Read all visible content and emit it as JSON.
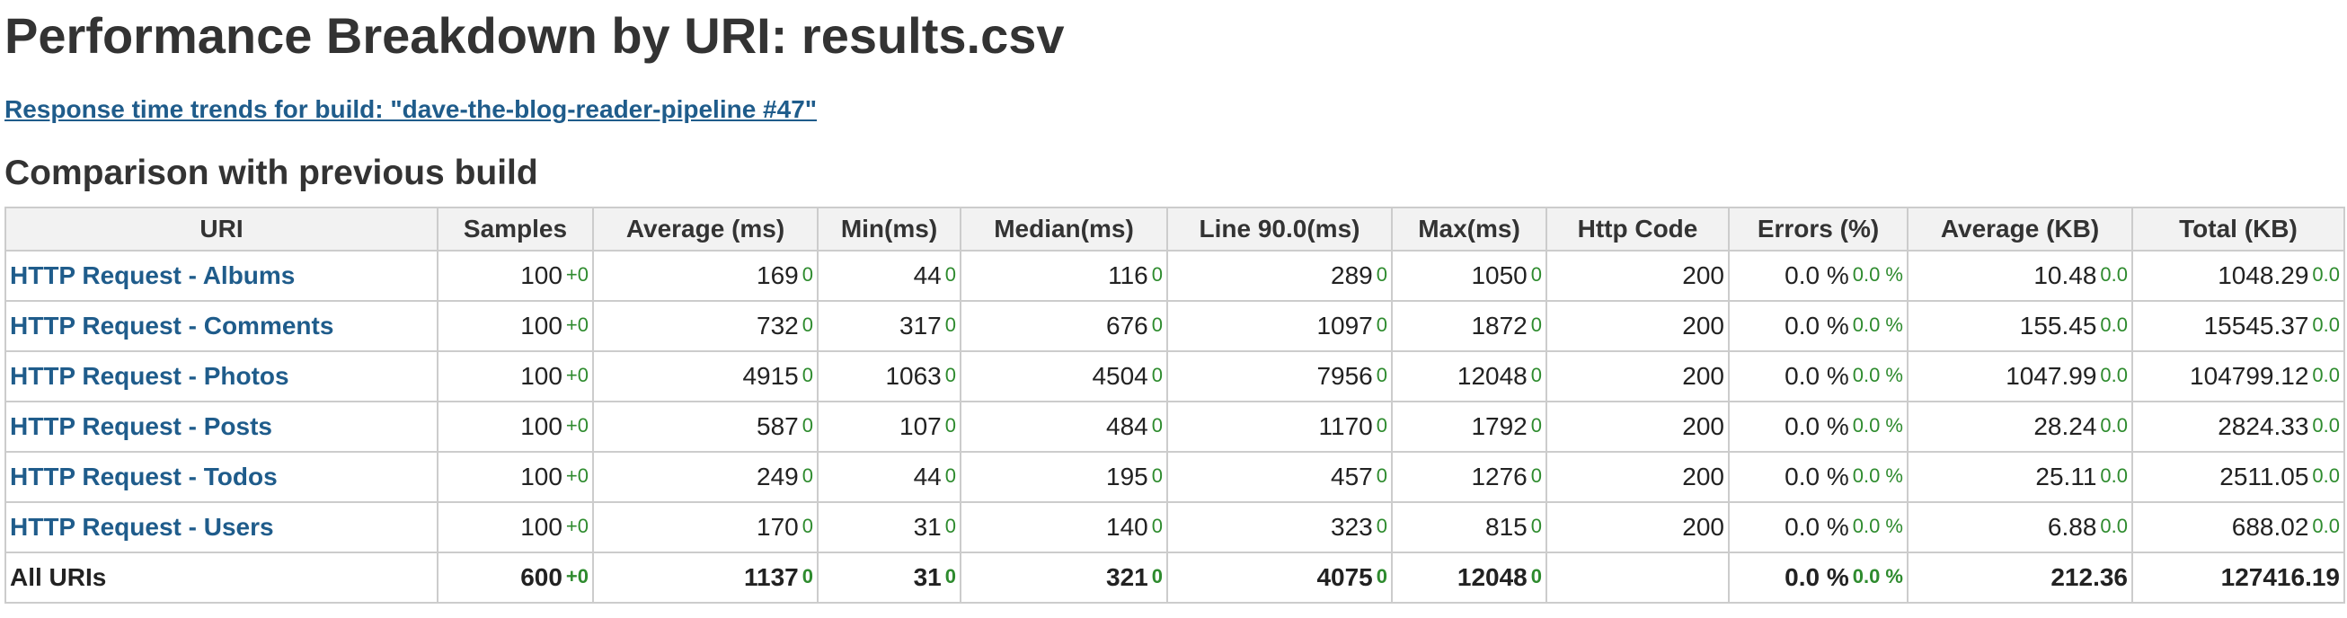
{
  "page": {
    "title": "Performance Breakdown by URI: results.csv",
    "trend_link": "Response time trends for build: \"dave-the-blog-reader-pipeline #47\"",
    "comparison_heading": "Comparison with previous build"
  },
  "table": {
    "headers": [
      "URI",
      "Samples",
      "Average (ms)",
      "Min(ms)",
      "Median(ms)",
      "Line 90.0(ms)",
      "Max(ms)",
      "Http Code",
      "Errors (%)",
      "Average (KB)",
      "Total (KB)"
    ],
    "rows": [
      {
        "uri": "HTTP Request - Albums",
        "samples": "100",
        "samples_d": "+0",
        "avg": "169",
        "avg_d": "0",
        "min": "44",
        "min_d": "0",
        "median": "116",
        "median_d": "0",
        "line90": "289",
        "line90_d": "0",
        "max": "1050",
        "max_d": "0",
        "http": "200",
        "errors": "0.0 %",
        "errors_d": "0.0 %",
        "avgkb": "10.48",
        "avgkb_d": "0.0",
        "totalkb": "1048.29",
        "totalkb_d": "0.0"
      },
      {
        "uri": "HTTP Request - Comments",
        "samples": "100",
        "samples_d": "+0",
        "avg": "732",
        "avg_d": "0",
        "min": "317",
        "min_d": "0",
        "median": "676",
        "median_d": "0",
        "line90": "1097",
        "line90_d": "0",
        "max": "1872",
        "max_d": "0",
        "http": "200",
        "errors": "0.0 %",
        "errors_d": "0.0 %",
        "avgkb": "155.45",
        "avgkb_d": "0.0",
        "totalkb": "15545.37",
        "totalkb_d": "0.0"
      },
      {
        "uri": "HTTP Request - Photos",
        "samples": "100",
        "samples_d": "+0",
        "avg": "4915",
        "avg_d": "0",
        "min": "1063",
        "min_d": "0",
        "median": "4504",
        "median_d": "0",
        "line90": "7956",
        "line90_d": "0",
        "max": "12048",
        "max_d": "0",
        "http": "200",
        "errors": "0.0 %",
        "errors_d": "0.0 %",
        "avgkb": "1047.99",
        "avgkb_d": "0.0",
        "totalkb": "104799.12",
        "totalkb_d": "0.0"
      },
      {
        "uri": "HTTP Request - Posts",
        "samples": "100",
        "samples_d": "+0",
        "avg": "587",
        "avg_d": "0",
        "min": "107",
        "min_d": "0",
        "median": "484",
        "median_d": "0",
        "line90": "1170",
        "line90_d": "0",
        "max": "1792",
        "max_d": "0",
        "http": "200",
        "errors": "0.0 %",
        "errors_d": "0.0 %",
        "avgkb": "28.24",
        "avgkb_d": "0.0",
        "totalkb": "2824.33",
        "totalkb_d": "0.0"
      },
      {
        "uri": "HTTP Request - Todos",
        "samples": "100",
        "samples_d": "+0",
        "avg": "249",
        "avg_d": "0",
        "min": "44",
        "min_d": "0",
        "median": "195",
        "median_d": "0",
        "line90": "457",
        "line90_d": "0",
        "max": "1276",
        "max_d": "0",
        "http": "200",
        "errors": "0.0 %",
        "errors_d": "0.0 %",
        "avgkb": "25.11",
        "avgkb_d": "0.0",
        "totalkb": "2511.05",
        "totalkb_d": "0.0"
      },
      {
        "uri": "HTTP Request - Users",
        "samples": "100",
        "samples_d": "+0",
        "avg": "170",
        "avg_d": "0",
        "min": "31",
        "min_d": "0",
        "median": "140",
        "median_d": "0",
        "line90": "323",
        "line90_d": "0",
        "max": "815",
        "max_d": "0",
        "http": "200",
        "errors": "0.0 %",
        "errors_d": "0.0 %",
        "avgkb": "6.88",
        "avgkb_d": "0.0",
        "totalkb": "688.02",
        "totalkb_d": "0.0"
      }
    ],
    "total": {
      "uri": "All URIs",
      "samples": "600",
      "samples_d": "+0",
      "avg": "1137",
      "avg_d": "0",
      "min": "31",
      "min_d": "0",
      "median": "321",
      "median_d": "0",
      "line90": "4075",
      "line90_d": "0",
      "max": "12048",
      "max_d": "0",
      "http": "",
      "errors": "0.0 %",
      "errors_d": "0.0 %",
      "avgkb": "212.36",
      "totalkb": "127416.19"
    }
  },
  "colors": {
    "link": "#1f5c8b",
    "delta": "#2e8b2e",
    "header_bg": "#f2f2f2",
    "border": "#cccccc"
  }
}
